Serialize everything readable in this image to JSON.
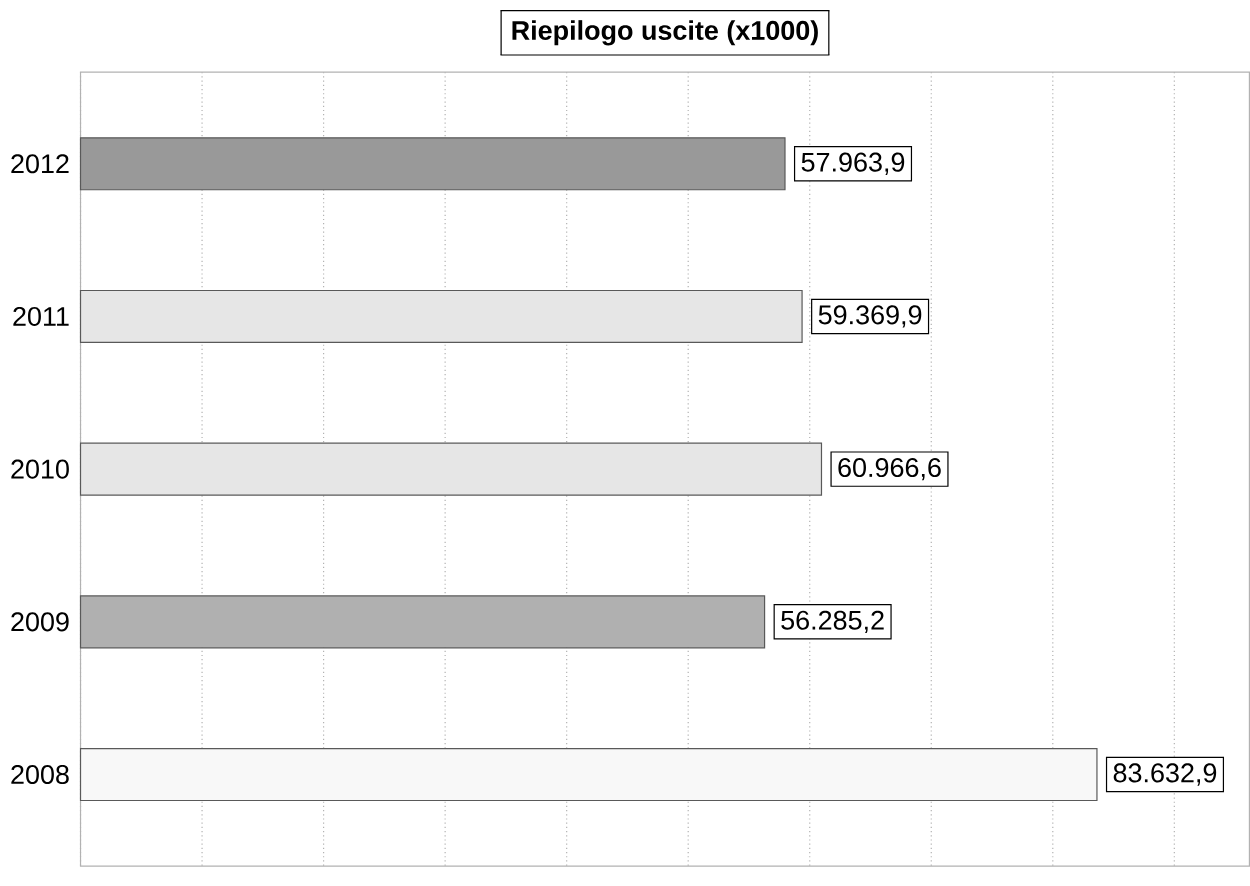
{
  "chart_data": {
    "type": "bar",
    "orientation": "horizontal",
    "title": "Riepilogo uscite (x1000)",
    "categories": [
      "2012",
      "2011",
      "2010",
      "2009",
      "2008"
    ],
    "values": [
      57963.9,
      59369.9,
      60966.6,
      56285.2,
      83632.9
    ],
    "value_labels": [
      "57.963,9",
      "59.369,9",
      "60.966,6",
      "56.285,2",
      "83.632,9"
    ],
    "colors": [
      "#999999",
      "#e6e6e6",
      "#e6e6e6",
      "#b0b0b0",
      "#f8f8f8"
    ],
    "grid": "x",
    "tick_labels": "y"
  }
}
